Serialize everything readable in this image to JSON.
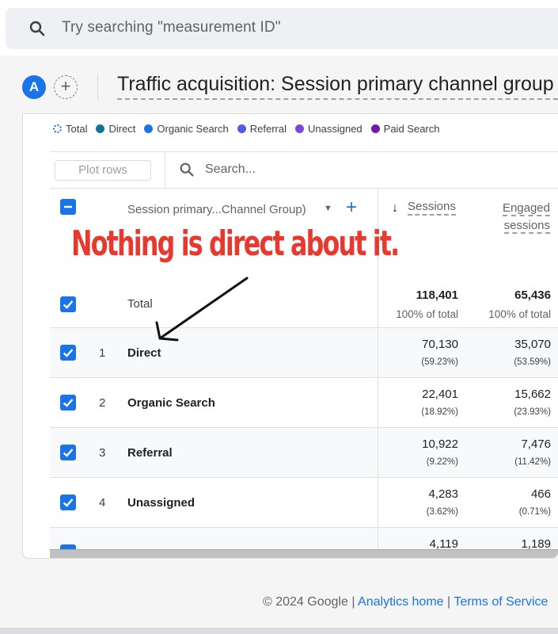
{
  "search": {
    "placeholder": "Try searching \"measurement ID\""
  },
  "header": {
    "avatar_letter": "A",
    "add_comparison_symbol": "+",
    "report_title": "Traffic acquisition: Session primary channel group (D"
  },
  "legend": {
    "items": [
      {
        "label": "Total",
        "color": "#1a73e8",
        "style": "dotted"
      },
      {
        "label": "Direct",
        "color": "#12739b"
      },
      {
        "label": "Organic Search",
        "color": "#1a73e8"
      },
      {
        "label": "Referral",
        "color": "#4f5ce8"
      },
      {
        "label": "Unassigned",
        "color": "#7b47d8"
      },
      {
        "label": "Paid Search",
        "color": "#7419a8"
      }
    ]
  },
  "toolbar": {
    "plot_rows_label": "Plot rows",
    "search_placeholder": "Search..."
  },
  "table": {
    "dimension_header": "Session primary...Channel Group)",
    "metric1_header": "Sessions",
    "metric2_header_line1": "Engaged",
    "metric2_header_line2": "sessions",
    "totals": {
      "label": "Total",
      "sessions": "118,401",
      "sessions_sub": "100% of total",
      "engaged": "65,436",
      "engaged_sub": "100% of total"
    },
    "rows": [
      {
        "rank": "1",
        "label": "Direct",
        "sessions": "70,130",
        "sessions_pct": "(59.23%)",
        "engaged": "35,070",
        "engaged_pct": "(53.59%)"
      },
      {
        "rank": "2",
        "label": "Organic Search",
        "sessions": "22,401",
        "sessions_pct": "(18.92%)",
        "engaged": "15,662",
        "engaged_pct": "(23.93%)"
      },
      {
        "rank": "3",
        "label": "Referral",
        "sessions": "10,922",
        "sessions_pct": "(9.22%)",
        "engaged": "7,476",
        "engaged_pct": "(11.42%)"
      },
      {
        "rank": "4",
        "label": "Unassigned",
        "sessions": "4,283",
        "sessions_pct": "(3.62%)",
        "engaged": "466",
        "engaged_pct": "(0.71%)"
      },
      {
        "rank": "",
        "label": "",
        "sessions": "4,119",
        "sessions_pct": "",
        "engaged": "1,189",
        "engaged_pct": ""
      }
    ]
  },
  "annotation": {
    "text": "Nothing is direct about it.",
    "color": "#e8392f"
  },
  "footer": {
    "copyright": "© 2024 Google",
    "separator": "|",
    "link1": "Analytics home",
    "link2": "Terms of Service"
  }
}
